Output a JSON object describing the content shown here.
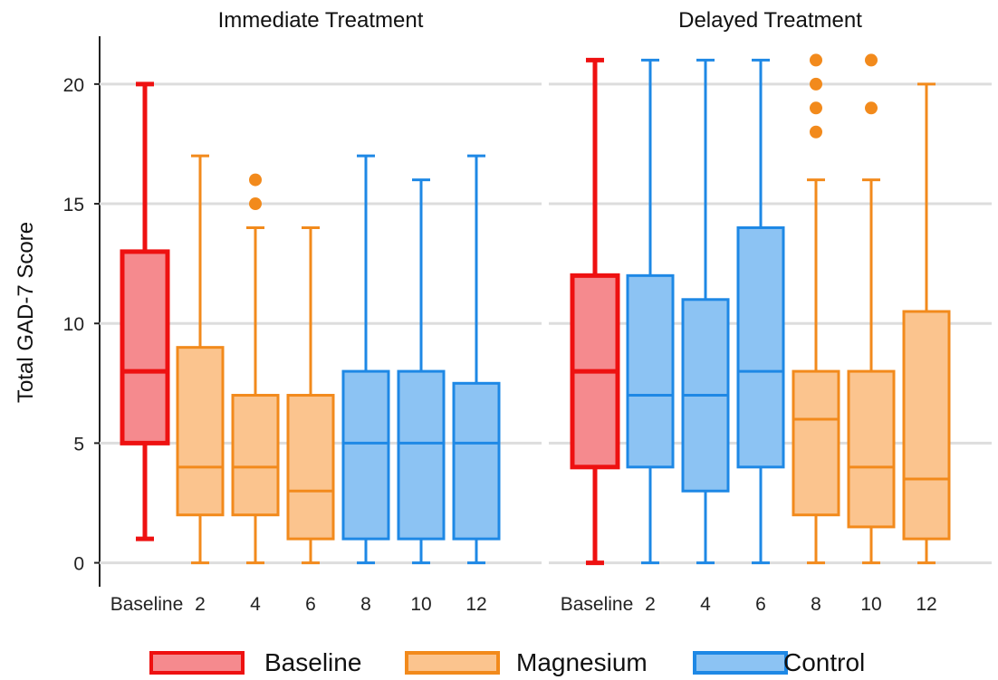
{
  "colors": {
    "Baseline": {
      "stroke": "#ee1111",
      "fill": "#f58a8e"
    },
    "Magnesium": {
      "stroke": "#f28a1c",
      "fill": "#fbc48e"
    },
    "Control": {
      "stroke": "#1e88e5",
      "fill": "#8cc3f3"
    },
    "grid": "#dddddd",
    "axis": "#222222"
  },
  "chart_data": {
    "type": "boxplot",
    "ylabel": "Total GAD-7 Score",
    "ylim": [
      -1,
      22
    ],
    "yticks": [
      0,
      5,
      10,
      15,
      20
    ],
    "grid": true,
    "legend": {
      "position": "bottom",
      "entries": [
        {
          "label": "Baseline",
          "group": "Baseline"
        },
        {
          "label": "Magnesium",
          "group": "Magnesium"
        },
        {
          "label": "Control",
          "group": "Control"
        }
      ]
    },
    "panels": [
      {
        "title": "Immediate Treatment",
        "boxes": [
          {
            "category": "Baseline",
            "group": "Baseline",
            "min": 1,
            "q1": 5,
            "median": 8,
            "q3": 13,
            "max": 20,
            "outliers": []
          },
          {
            "category": "2",
            "group": "Magnesium",
            "min": 0,
            "q1": 2,
            "median": 4,
            "q3": 9,
            "max": 17,
            "outliers": []
          },
          {
            "category": "4",
            "group": "Magnesium",
            "min": 0,
            "q1": 2,
            "median": 4,
            "q3": 7,
            "max": 14,
            "outliers": [
              15,
              16
            ]
          },
          {
            "category": "6",
            "group": "Magnesium",
            "min": 0,
            "q1": 1,
            "median": 3,
            "q3": 7,
            "max": 14,
            "outliers": []
          },
          {
            "category": "8",
            "group": "Control",
            "min": 0,
            "q1": 1,
            "median": 5,
            "q3": 8,
            "max": 17,
            "outliers": []
          },
          {
            "category": "10",
            "group": "Control",
            "min": 0,
            "q1": 1,
            "median": 5,
            "q3": 8,
            "max": 16,
            "outliers": []
          },
          {
            "category": "12",
            "group": "Control",
            "min": 0,
            "q1": 1,
            "median": 5,
            "q3": 7.5,
            "max": 17,
            "outliers": []
          }
        ]
      },
      {
        "title": "Delayed Treatment",
        "boxes": [
          {
            "category": "Baseline",
            "group": "Baseline",
            "min": 0,
            "q1": 4,
            "median": 8,
            "q3": 12,
            "max": 21,
            "outliers": []
          },
          {
            "category": "2",
            "group": "Control",
            "min": 0,
            "q1": 4,
            "median": 7,
            "q3": 12,
            "max": 21,
            "outliers": []
          },
          {
            "category": "4",
            "group": "Control",
            "min": 0,
            "q1": 3,
            "median": 7,
            "q3": 11,
            "max": 21,
            "outliers": []
          },
          {
            "category": "6",
            "group": "Control",
            "min": 0,
            "q1": 4,
            "median": 8,
            "q3": 14,
            "max": 21,
            "outliers": []
          },
          {
            "category": "8",
            "group": "Magnesium",
            "min": 0,
            "q1": 2,
            "median": 6,
            "q3": 8,
            "max": 16,
            "outliers": [
              18,
              19,
              20,
              21
            ]
          },
          {
            "category": "10",
            "group": "Magnesium",
            "min": 0,
            "q1": 1.5,
            "median": 4,
            "q3": 8,
            "max": 16,
            "outliers": [
              19,
              21
            ]
          },
          {
            "category": "12",
            "group": "Magnesium",
            "min": 0,
            "q1": 1,
            "median": 3.5,
            "q3": 10.5,
            "max": 20,
            "outliers": []
          }
        ]
      }
    ]
  }
}
